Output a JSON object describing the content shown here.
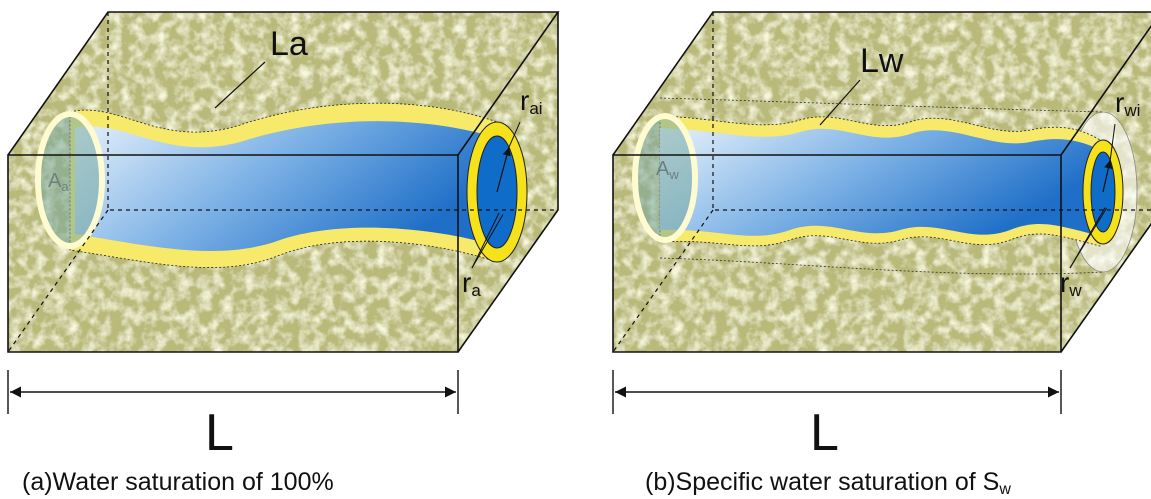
{
  "panels": [
    {
      "tube_length": "La",
      "inner_radius": {
        "main": "r",
        "sub": "ai"
      },
      "outer_radius": {
        "main": "r",
        "sub": "a"
      },
      "area": {
        "main": "A",
        "sub": "a"
      },
      "length": "L",
      "caption": {
        "main": "(a)Water saturation of 100%"
      }
    },
    {
      "tube_length": "Lw",
      "inner_radius": {
        "main": "r",
        "sub": "wi"
      },
      "outer_radius": {
        "main": "r",
        "sub": "w"
      },
      "area": {
        "main": "A",
        "sub": "w"
      },
      "length": "L",
      "caption": {
        "main": "(b)Specific water saturation of S",
        "sub": "w"
      }
    }
  ]
}
